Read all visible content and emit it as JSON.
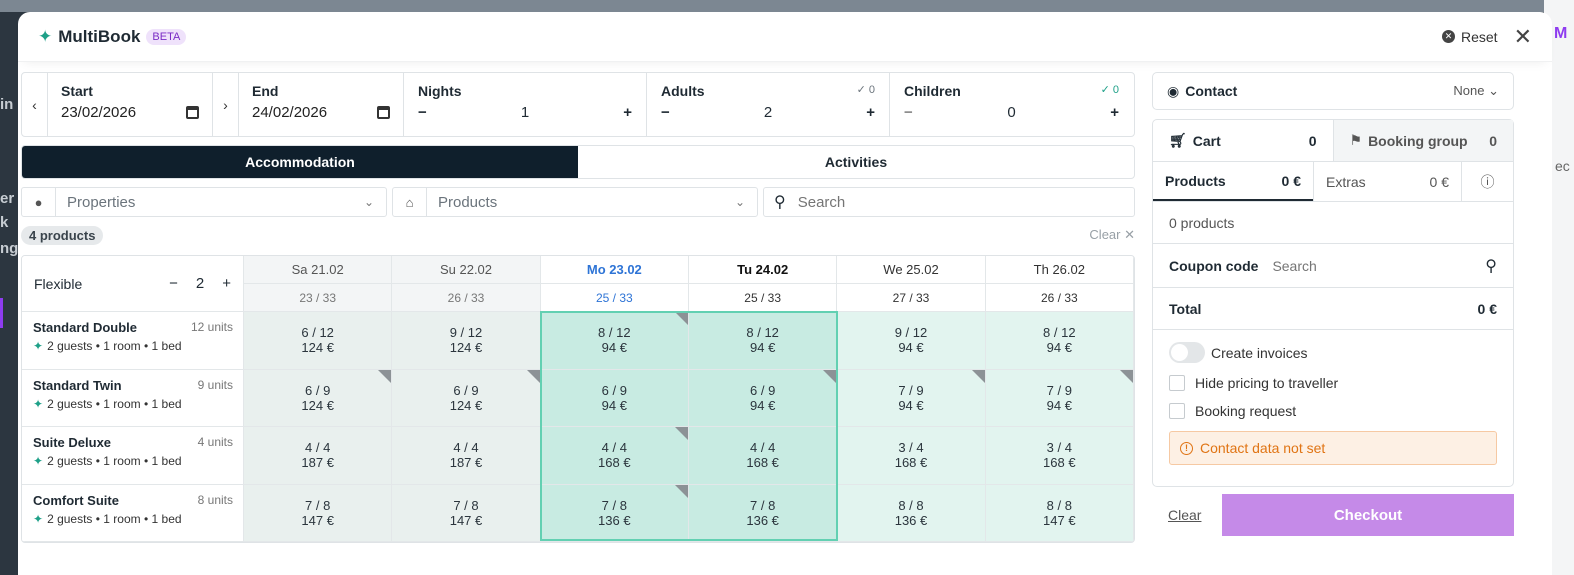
{
  "background": {
    "left_texts": [
      "in",
      "er",
      "k",
      "ng"
    ],
    "right_text": "M",
    "right_text2": "ec"
  },
  "header": {
    "app_name": "MultiBook",
    "badge": "BETA",
    "reset_label": "Reset",
    "close_glyph": "✕"
  },
  "dates": {
    "start_label": "Start",
    "start_value": "23/02/2026",
    "end_label": "End",
    "end_value": "24/02/2026",
    "nights_label": "Nights",
    "nights_value": "1",
    "adults_label": "Adults",
    "adults_value": "2",
    "adults_hint": "✓ 0",
    "children_label": "Children",
    "children_value": "0",
    "children_hint": "✓ 0",
    "prev_glyph": "‹",
    "next_glyph": "›",
    "minus": "−",
    "plus": "+"
  },
  "tabs": [
    "Accommodation",
    "Activities"
  ],
  "filters": {
    "properties": "Properties",
    "products": "Products",
    "search_placeholder": "Search"
  },
  "count_badge": "4 products",
  "clear_label": "Clear ✕",
  "grid": {
    "flex_label": "Flexible",
    "flex_value": "2",
    "days": [
      {
        "label": "Sa 21.02",
        "sub": "23 / 33",
        "kind": "past"
      },
      {
        "label": "Su 22.02",
        "sub": "26 / 33",
        "kind": "past"
      },
      {
        "label": "Mo 23.02",
        "sub": "25 / 33",
        "kind": "today"
      },
      {
        "label": "Tu 24.02",
        "sub": "25 / 33",
        "kind": "sel"
      },
      {
        "label": "We 25.02",
        "sub": "27 / 33",
        "kind": "fut"
      },
      {
        "label": "Th 26.02",
        "sub": "26 / 33",
        "kind": "fut"
      }
    ],
    "products": [
      {
        "name": "Standard Double",
        "units": "12 units",
        "desc": "2 guests • 1 room • 1 bed",
        "cells": [
          [
            "6 / 12",
            "124 €",
            false
          ],
          [
            "9 / 12",
            "124 €",
            false
          ],
          [
            "8 / 12",
            "94 €",
            true
          ],
          [
            "8 / 12",
            "94 €",
            false
          ],
          [
            "9 / 12",
            "94 €",
            false
          ],
          [
            "8 / 12",
            "94 €",
            false
          ]
        ]
      },
      {
        "name": "Standard Twin",
        "units": "9 units",
        "desc": "2 guests • 1 room • 1 bed",
        "cells": [
          [
            "6 / 9",
            "124 €",
            true
          ],
          [
            "6 / 9",
            "124 €",
            true
          ],
          [
            "6 / 9",
            "94 €",
            false
          ],
          [
            "6 / 9",
            "94 €",
            true
          ],
          [
            "7 / 9",
            "94 €",
            true
          ],
          [
            "7 / 9",
            "94 €",
            true
          ]
        ]
      },
      {
        "name": "Suite Deluxe",
        "units": "4 units",
        "desc": "2 guests • 1 room • 1 bed",
        "cells": [
          [
            "4 / 4",
            "187 €",
            false
          ],
          [
            "4 / 4",
            "187 €",
            false
          ],
          [
            "4 / 4",
            "168 €",
            true
          ],
          [
            "4 / 4",
            "168 €",
            false
          ],
          [
            "3 / 4",
            "168 €",
            false
          ],
          [
            "3 / 4",
            "168 €",
            false
          ]
        ]
      },
      {
        "name": "Comfort Suite",
        "units": "8 units",
        "desc": "2 guests • 1 room • 1 bed",
        "cells": [
          [
            "7 / 8",
            "147 €",
            false
          ],
          [
            "7 / 8",
            "147 €",
            false
          ],
          [
            "7 / 8",
            "136 €",
            true
          ],
          [
            "7 / 8",
            "136 €",
            false
          ],
          [
            "8 / 8",
            "136 €",
            false
          ],
          [
            "8 / 8",
            "147 €",
            false
          ]
        ]
      }
    ]
  },
  "sidebar": {
    "contact_label": "Contact",
    "contact_value": "None",
    "cart_label": "Cart",
    "cart_count": "0",
    "group_label": "Booking group",
    "group_count": "0",
    "products_tab": "Products",
    "products_amount": "0 €",
    "extras_tab": "Extras",
    "extras_amount": "0 €",
    "product_count": "0 products",
    "coupon_label": "Coupon code",
    "coupon_placeholder": "Search",
    "total_label": "Total",
    "total_value": "0 €",
    "create_invoices": "Create invoices",
    "hide_pricing": "Hide pricing to traveller",
    "booking_request": "Booking request",
    "warning": "Contact data not set",
    "clear": "Clear",
    "checkout": "Checkout"
  },
  "colors": {
    "accent": "#0f1f2c",
    "checkout": "#c58ae8",
    "selected_cell": "#c8ebe2",
    "warning": "#e07414"
  }
}
